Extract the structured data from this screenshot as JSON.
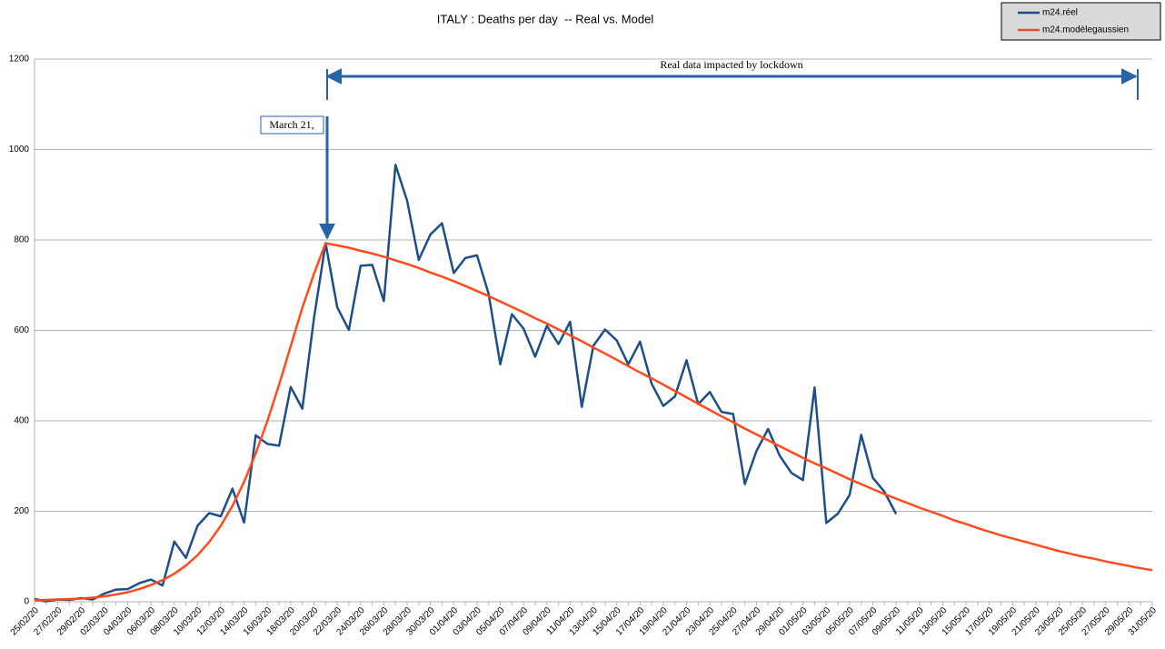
{
  "chart_data": {
    "type": "line",
    "title": "ITALY : Deaths per day  -- Real vs. Model",
    "annotations": [
      "Real data impacted by lockdown",
      "March 21,"
    ],
    "legend": "upper right",
    "grid": true,
    "ylim": [
      0,
      1200
    ],
    "yticks": [
      0,
      200,
      400,
      600,
      800,
      1000,
      1200
    ],
    "categories": [
      "25/02/20",
      null,
      "27/02/20",
      null,
      "29/02/20",
      null,
      "02/03/20",
      null,
      "04/03/20",
      null,
      "06/03/20",
      null,
      "08/03/20",
      null,
      "10/03/20",
      null,
      "12/03/20",
      null,
      "14/03/20",
      null,
      "16/03/20",
      null,
      "18/03/20",
      null,
      "20/03/20",
      null,
      "22/03/20",
      null,
      "24/03/20",
      null,
      "26/03/20",
      null,
      "28/03/20",
      null,
      "30/03/20",
      null,
      "01/04/20",
      null,
      "03/04/20",
      null,
      "05/04/20",
      null,
      "07/04/20",
      null,
      "09/04/20",
      null,
      "11/04/20",
      null,
      "13/04/20",
      null,
      "15/04/20",
      null,
      "17/04/20",
      null,
      "19/04/20",
      null,
      "21/04/20",
      null,
      "23/04/20",
      null,
      "25/04/20",
      null,
      "27/04/20",
      null,
      "29/04/20",
      null,
      "01/05/20",
      null,
      "03/05/20",
      null,
      "05/05/20",
      null,
      "07/05/20",
      null,
      "09/05/20",
      null,
      "11/05/20",
      null,
      "13/05/20",
      null,
      "15/05/20",
      null,
      "17/05/20",
      null,
      "19/05/20",
      null,
      "21/05/20",
      null,
      "23/05/20",
      null,
      "25/05/20",
      null,
      "27/05/20",
      null,
      "29/05/20",
      null,
      "31/05/20"
    ],
    "series": [
      {
        "name": "m24.réel",
        "color": "#1c4f8a",
        "values": [
          6,
          1,
          5,
          4,
          8,
          5,
          18,
          27,
          28,
          41,
          49,
          36,
          133,
          97,
          168,
          196,
          189,
          250,
          175,
          368,
          349,
          345,
          475,
          427,
          627,
          793,
          651,
          601,
          743,
          745,
          665,
          966,
          887,
          756,
          812,
          837,
          727,
          760,
          766,
          681,
          525,
          636,
          604,
          542,
          610,
          570,
          619,
          431,
          566,
          602,
          578,
          525,
          575,
          482,
          433,
          454,
          534,
          437,
          464,
          420,
          415,
          260,
          333,
          382,
          323,
          285,
          269,
          474,
          174,
          195,
          236,
          369,
          274,
          243,
          194,
          null,
          null,
          null,
          null,
          null,
          null,
          null,
          null,
          null,
          null,
          null,
          null,
          null,
          null,
          null,
          null,
          null,
          null,
          null,
          null,
          null,
          null
        ]
      },
      {
        "name": "m24.modèlegaussien",
        "color": "#ff4a1c",
        "values": [
          3,
          4,
          5,
          6,
          7,
          9,
          12,
          16,
          21,
          28,
          37,
          48,
          62,
          80,
          103,
          132,
          168,
          212,
          265,
          328,
          400,
          480,
          565,
          650,
          725,
          793,
          788,
          783,
          776,
          770,
          763,
          755,
          747,
          738,
          728,
          719,
          709,
          698,
          687,
          676,
          664,
          652,
          640,
          627,
          615,
          602,
          589,
          576,
          562,
          549,
          535,
          521,
          507,
          494,
          480,
          466,
          452,
          438,
          424,
          410,
          397,
          383,
          370,
          357,
          344,
          331,
          318,
          306,
          295,
          283,
          271,
          260,
          249,
          238,
          228,
          218,
          208,
          199,
          190,
          180,
          172,
          163,
          155,
          147,
          140,
          133,
          126,
          119,
          112,
          106,
          100,
          95,
          89,
          84,
          79,
          74,
          70
        ]
      }
    ]
  }
}
